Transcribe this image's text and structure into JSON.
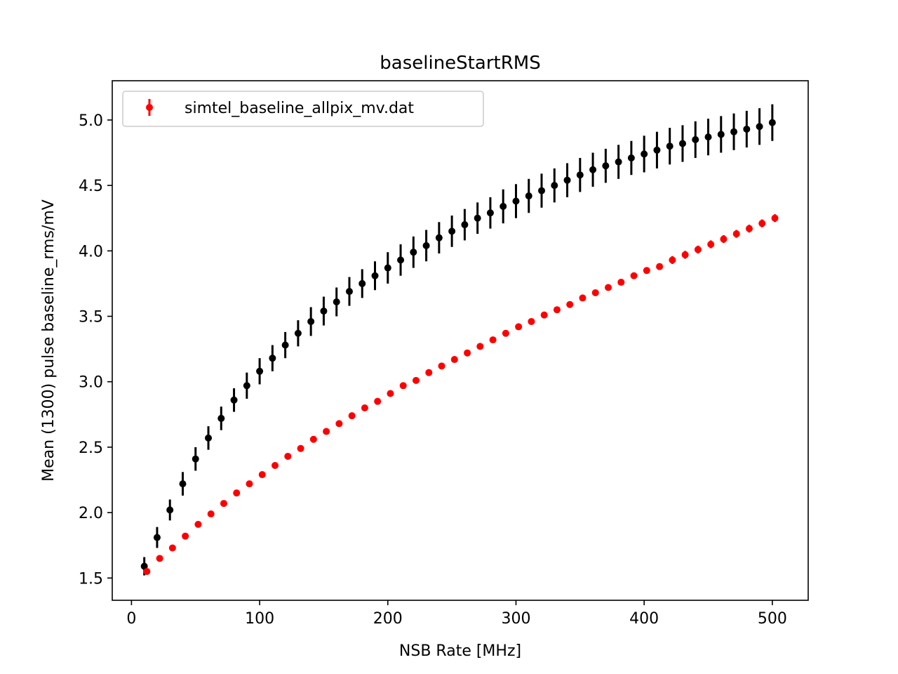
{
  "chart_data": {
    "type": "scatter",
    "title": "baselineStartRMS",
    "xlabel": "NSB Rate [MHz]",
    "ylabel": "Mean (1300) pulse baseline_rms/mV",
    "xlim": [
      -15,
      528
    ],
    "ylim": [
      1.33,
      5.3
    ],
    "xticks": [
      0,
      100,
      200,
      300,
      400,
      500
    ],
    "xtick_labels": [
      "0",
      "100",
      "200",
      "300",
      "400",
      "500"
    ],
    "yticks": [
      1.5,
      2.0,
      2.5,
      3.0,
      3.5,
      4.0,
      4.5,
      5.0
    ],
    "ytick_labels": [
      "1.5",
      "2.0",
      "2.5",
      "3.0",
      "3.5",
      "4.0",
      "4.5",
      "5.0"
    ],
    "grid": false,
    "legend_position": "top-left",
    "series": [
      {
        "name": "",
        "color": "#000000",
        "x": [
          10,
          20,
          30,
          40,
          50,
          60,
          70,
          80,
          90,
          100,
          110,
          120,
          130,
          140,
          150,
          160,
          170,
          180,
          190,
          200,
          210,
          220,
          230,
          240,
          250,
          260,
          270,
          280,
          290,
          300,
          310,
          320,
          330,
          340,
          350,
          360,
          370,
          380,
          390,
          400,
          410,
          420,
          430,
          440,
          450,
          460,
          470,
          480,
          490,
          500
        ],
        "y": [
          1.59,
          1.81,
          2.02,
          2.22,
          2.41,
          2.57,
          2.72,
          2.86,
          2.97,
          3.08,
          3.18,
          3.28,
          3.37,
          3.46,
          3.54,
          3.61,
          3.69,
          3.75,
          3.81,
          3.87,
          3.93,
          3.99,
          4.04,
          4.1,
          4.15,
          4.2,
          4.25,
          4.29,
          4.34,
          4.38,
          4.42,
          4.46,
          4.5,
          4.54,
          4.58,
          4.62,
          4.65,
          4.68,
          4.71,
          4.74,
          4.77,
          4.8,
          4.82,
          4.85,
          4.87,
          4.89,
          4.91,
          4.93,
          4.95,
          4.98
        ],
        "yerr": [
          0.07,
          0.08,
          0.08,
          0.09,
          0.09,
          0.09,
          0.09,
          0.09,
          0.1,
          0.1,
          0.1,
          0.1,
          0.1,
          0.11,
          0.11,
          0.11,
          0.11,
          0.11,
          0.11,
          0.12,
          0.12,
          0.12,
          0.12,
          0.12,
          0.12,
          0.12,
          0.12,
          0.12,
          0.13,
          0.13,
          0.13,
          0.13,
          0.13,
          0.13,
          0.13,
          0.13,
          0.13,
          0.13,
          0.13,
          0.14,
          0.14,
          0.14,
          0.14,
          0.14,
          0.14,
          0.14,
          0.14,
          0.14,
          0.14,
          0.14
        ]
      },
      {
        "name": "simtel_baseline_allpix_mv.dat",
        "color": "#ff0000",
        "x": [
          12,
          22,
          32,
          42,
          52,
          62,
          72,
          82,
          92,
          102,
          112,
          122,
          132,
          142,
          152,
          162,
          172,
          182,
          192,
          202,
          212,
          222,
          232,
          242,
          252,
          262,
          272,
          282,
          292,
          302,
          312,
          322,
          332,
          342,
          352,
          362,
          372,
          382,
          392,
          402,
          412,
          422,
          432,
          442,
          452,
          462,
          472,
          482,
          492,
          502
        ],
        "y": [
          1.55,
          1.65,
          1.73,
          1.82,
          1.91,
          1.99,
          2.07,
          2.15,
          2.22,
          2.29,
          2.36,
          2.43,
          2.49,
          2.56,
          2.62,
          2.68,
          2.74,
          2.8,
          2.85,
          2.91,
          2.97,
          3.01,
          3.07,
          3.12,
          3.17,
          3.22,
          3.27,
          3.32,
          3.37,
          3.42,
          3.46,
          3.51,
          3.55,
          3.59,
          3.64,
          3.68,
          3.72,
          3.76,
          3.81,
          3.85,
          3.88,
          3.93,
          3.97,
          4.01,
          4.05,
          4.09,
          4.13,
          4.17,
          4.21,
          4.25
        ],
        "yerr": [
          0.01,
          0.01,
          0.01,
          0.01,
          0.01,
          0.01,
          0.01,
          0.01,
          0.01,
          0.01,
          0.01,
          0.01,
          0.01,
          0.01,
          0.01,
          0.01,
          0.01,
          0.01,
          0.01,
          0.01,
          0.01,
          0.01,
          0.01,
          0.02,
          0.02,
          0.02,
          0.02,
          0.02,
          0.02,
          0.02,
          0.02,
          0.02,
          0.02,
          0.02,
          0.02,
          0.02,
          0.02,
          0.02,
          0.02,
          0.02,
          0.02,
          0.03,
          0.03,
          0.03,
          0.03,
          0.03,
          0.03,
          0.03,
          0.03,
          0.03
        ]
      }
    ]
  }
}
